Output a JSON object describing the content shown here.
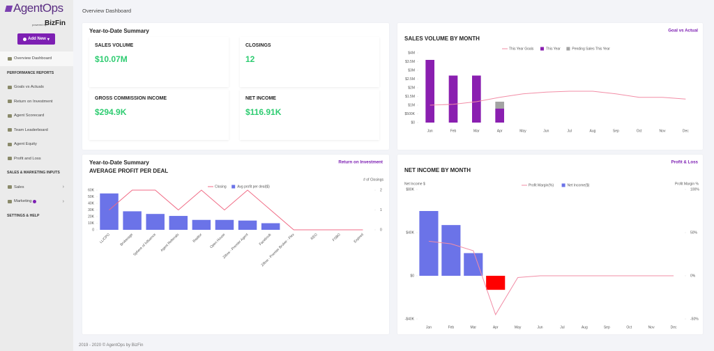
{
  "sidebar": {
    "logo": "AgentOps",
    "powered_by": "powered by",
    "brand": "BizFin",
    "add_new": "Add New",
    "menu": [
      {
        "text": "Overview Dashboard",
        "kind": "link",
        "active": true
      },
      {
        "text": "PERFORMANCE REPORTS",
        "kind": "section"
      },
      {
        "text": "Goals vs Actuals",
        "kind": "link"
      },
      {
        "text": "Return on Investment",
        "kind": "link"
      },
      {
        "text": "Agent Scorecard",
        "kind": "link"
      },
      {
        "text": "Team Leaderboard",
        "kind": "link"
      },
      {
        "text": "Agent Equity",
        "kind": "link"
      },
      {
        "text": "Profit and Loss",
        "kind": "link"
      },
      {
        "text": "SALES & MARKETING INPUTS",
        "kind": "section"
      },
      {
        "text": "Sales",
        "kind": "link",
        "chevron": true
      },
      {
        "text": "Marketing",
        "kind": "link",
        "chevron": true,
        "badge": true
      },
      {
        "text": "SETTINGS & HELP",
        "kind": "section"
      }
    ]
  },
  "page_title": "Overview Dashboard",
  "summary": {
    "title": "Year-to-Date Summary",
    "metrics": [
      {
        "label": "SALES VOLUME",
        "value": "$10.07M"
      },
      {
        "label": "CLOSINGS",
        "value": "12"
      },
      {
        "label": "GROSS COMMISSION INCOME",
        "value": "$294.9K"
      },
      {
        "label": "NET INCOME",
        "value": "$116.91K"
      }
    ]
  },
  "footer": "2019 - 2020 © AgentOps by BizFin",
  "chart_data": [
    {
      "type": "bar",
      "title": "SALES VOLUME BY MONTH",
      "link": "Goal vs Actual",
      "stacked": true,
      "categories": [
        "Jan",
        "Feb",
        "Mar",
        "Apr",
        "May",
        "Jun",
        "Jul",
        "Aug",
        "Sep",
        "Oct",
        "Nov",
        "Dec"
      ],
      "series": [
        {
          "name": "This Year Goals",
          "kind": "line",
          "color": "#f28da6",
          "values": [
            1000000,
            1050000,
            1200000,
            1450000,
            1650000,
            1750000,
            1800000,
            1800000,
            1650000,
            1450000,
            1450000,
            1350000
          ]
        },
        {
          "name": "This Year",
          "kind": "bar",
          "color": "#8a1fb0",
          "values": [
            3600000,
            2700000,
            2700000,
            800000,
            null,
            null,
            null,
            null,
            null,
            null,
            null,
            null
          ]
        },
        {
          "name": "Pending Sales This Year",
          "kind": "bar",
          "color": "#a3a3a3",
          "values": [
            null,
            null,
            null,
            400000,
            null,
            null,
            null,
            null,
            null,
            null,
            null,
            null
          ]
        }
      ],
      "ylim": [
        0,
        4000000
      ],
      "yticks": [
        {
          "value": 0,
          "label": "$0"
        },
        {
          "value": 500000,
          "label": "$500K"
        },
        {
          "value": 1000000,
          "label": "$1M"
        },
        {
          "value": 1500000,
          "label": "$1.5M"
        },
        {
          "value": 2000000,
          "label": "$2M"
        },
        {
          "value": 2500000,
          "label": "$2.5M"
        },
        {
          "value": 3000000,
          "label": "$3M"
        },
        {
          "value": 3500000,
          "label": "$3.5M"
        },
        {
          "value": 4000000,
          "label": "$4M"
        }
      ]
    },
    {
      "type": "bar",
      "supertitle": "Year-to-Date Summary",
      "title": "AVERAGE PROFIT PER DEAL",
      "link": "Return on Investment",
      "y2label": "# of Closings",
      "categories": [
        "LL/CPO",
        "Brokerage",
        "Sphere of Influence",
        "Agent Referrals",
        "Realtor",
        "Open House",
        "Zillow - Premier Agent",
        "Facebook",
        "Zillow - Premier Broker - Flex",
        "REO",
        "FSBO",
        "Expired"
      ],
      "series": [
        {
          "name": "Closing",
          "kind": "line",
          "axis": "y2",
          "color": "#f06a84",
          "values": [
            1,
            2,
            2,
            1,
            2,
            1,
            2,
            1,
            0,
            0,
            0,
            0
          ]
        },
        {
          "name": "Avg profit per deal($)",
          "kind": "bar",
          "color": "#6b73e8",
          "values": [
            55000,
            28000,
            24000,
            21000,
            15000,
            15000,
            14000,
            10000,
            null,
            null,
            null,
            null
          ]
        }
      ],
      "ylim": [
        0,
        60000
      ],
      "yticks": [
        0,
        {
          "value": 10000,
          "label": "10K"
        },
        {
          "value": 20000,
          "label": "20K"
        },
        {
          "value": 30000,
          "label": "30K"
        },
        {
          "value": 40000,
          "label": "40K"
        },
        {
          "value": 50000,
          "label": "50K"
        },
        {
          "value": 60000,
          "label": "60K"
        }
      ],
      "y2lim": [
        0,
        2
      ],
      "y2ticks": [
        0,
        1,
        2
      ]
    },
    {
      "type": "bar",
      "title": "NET INCOME BY MONTH",
      "link": "Profit & Loss",
      "ylabel": "Net Income $",
      "y2label": "Profit Margin %",
      "categories": [
        "Jan",
        "Feb",
        "Mar",
        "Apr",
        "May",
        "Jun",
        "Jul",
        "Aug",
        "Sep",
        "Oct",
        "Nov",
        "Dec"
      ],
      "series": [
        {
          "name": "Profit Margin(%)",
          "kind": "line",
          "axis": "y2",
          "color": "#f28da6",
          "values": [
            40,
            37,
            29,
            -45,
            -2,
            0,
            0,
            0,
            0,
            0,
            0,
            0
          ]
        },
        {
          "name": "Net Income($)",
          "kind": "bar",
          "color": "#6b73e8",
          "negative_color": "#ff0000",
          "values": [
            60000,
            47000,
            21000,
            -13000,
            null,
            null,
            null,
            null,
            null,
            null,
            null,
            null
          ]
        }
      ],
      "ylim": [
        -40000,
        80000
      ],
      "yticks": [
        {
          "value": -40000,
          "label": "-$40K"
        },
        {
          "value": 0,
          "label": "$0"
        },
        {
          "value": 40000,
          "label": "$40K"
        },
        {
          "value": 80000,
          "label": "$80K"
        }
      ],
      "y2lim": [
        -50,
        100
      ],
      "y2ticks": [
        {
          "value": -50,
          "label": "-50%"
        },
        {
          "value": 0,
          "label": "0%"
        },
        {
          "value": 50,
          "label": "50%"
        },
        {
          "value": 100,
          "label": "100%"
        }
      ]
    }
  ]
}
